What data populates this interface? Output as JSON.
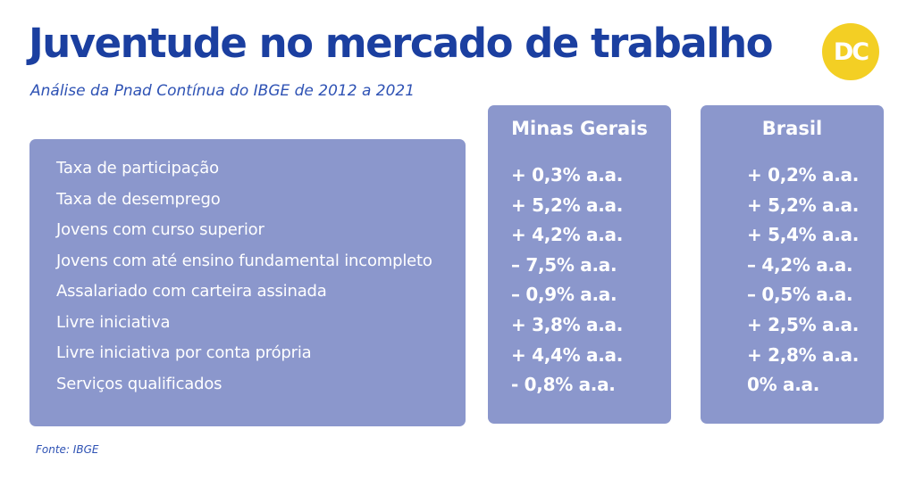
{
  "header": {
    "title": "Juventude no mercado de trabalho",
    "subtitle": "Análise da Pnad Contínua do IBGE de 2012 a 2021",
    "logo_text": "DC"
  },
  "table": {
    "row_labels": [
      "Taxa de participação",
      "Taxa de desemprego",
      "Jovens com curso superior",
      "Jovens com até ensino fundamental incompleto",
      "Assalariado com carteira assinada",
      "Livre iniciativa",
      "Livre iniciativa por conta própria",
      "Serviços qualificados"
    ],
    "columns": [
      {
        "header": "Minas Gerais",
        "values": [
          "+ 0,3% a.a.",
          "+ 5,2% a.a.",
          "+ 4,2% a.a.",
          "– 7,5% a.a.",
          "– 0,9% a.a.",
          "+ 3,8% a.a.",
          "+ 4,4% a.a.",
          "- 0,8% a.a."
        ]
      },
      {
        "header": "Brasil",
        "values": [
          "+ 0,2% a.a.",
          "+ 5,2% a.a.",
          "+ 5,4% a.a.",
          "– 4,2% a.a.",
          "– 0,5% a.a.",
          "+ 2,5% a.a.",
          "+ 2,8% a.a.",
          "0% a.a."
        ]
      }
    ]
  },
  "footer": {
    "source": "Fonte: IBGE"
  },
  "colors": {
    "title": "#1b3fa0",
    "panel": "#8b97cc",
    "logo": "#f3cf24"
  }
}
